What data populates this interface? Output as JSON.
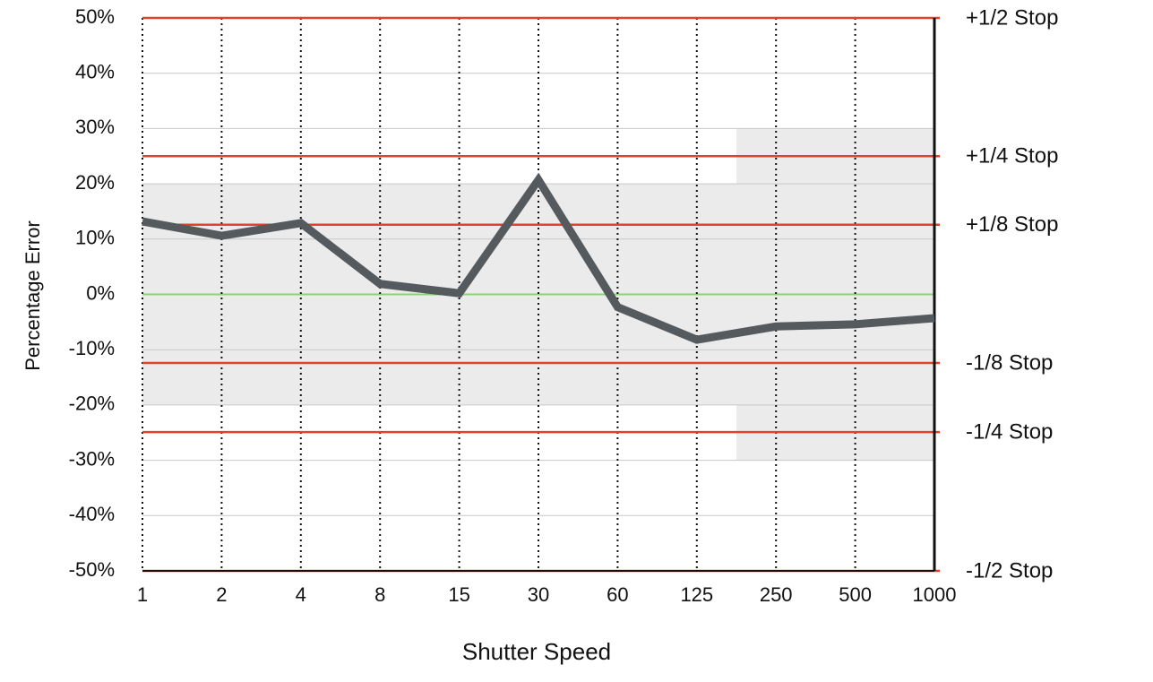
{
  "chart_data": {
    "type": "line",
    "x_label": "Shutter Speed",
    "y_label": "Percentage Error",
    "categories": [
      "1",
      "2",
      "4",
      "8",
      "15",
      "30",
      "60",
      "125",
      "250",
      "500",
      "1000"
    ],
    "series": [
      {
        "color": "#555a5e",
        "values": [
          13.2,
          10.6,
          12.9,
          1.9,
          0.2,
          20.7,
          -2.3,
          -8.2,
          -5.8,
          -5.4,
          -4.3
        ]
      }
    ],
    "ylim": [
      -50,
      50
    ],
    "yticks": [
      {
        "value": -50,
        "label": "-50%"
      },
      {
        "value": -40,
        "label": "-40%"
      },
      {
        "value": -30,
        "label": "-30%"
      },
      {
        "value": -20,
        "label": "-20%"
      },
      {
        "value": -10,
        "label": "-10%"
      },
      {
        "value": 0,
        "label": "0%"
      },
      {
        "value": 10,
        "label": "10%"
      },
      {
        "value": 20,
        "label": "20%"
      },
      {
        "value": 30,
        "label": "30%"
      },
      {
        "value": 40,
        "label": "40%"
      },
      {
        "value": 50,
        "label": "50%"
      }
    ],
    "grid": true,
    "zero_line_color": "#8fd07a",
    "reference_lines": [
      {
        "label": "+1/2 Stop",
        "value": 50
      },
      {
        "label": "+1/4 Stop",
        "value": 25
      },
      {
        "label": "+1/8 Stop",
        "value": 12.6
      },
      {
        "label": "-1/8 Stop",
        "value": -12.4
      },
      {
        "label": "-1/4 Stop",
        "value": -24.9
      },
      {
        "label": "-1/2 Stop",
        "value": -50
      }
    ],
    "reference_color": "#e0432b",
    "bands": [
      {
        "from": "1",
        "to": "125",
        "ymin": -20,
        "ymax": 20
      },
      {
        "from": "250",
        "to": "1000",
        "ymin": -30,
        "ymax": 30
      }
    ],
    "band_color": "#ebebeb"
  }
}
